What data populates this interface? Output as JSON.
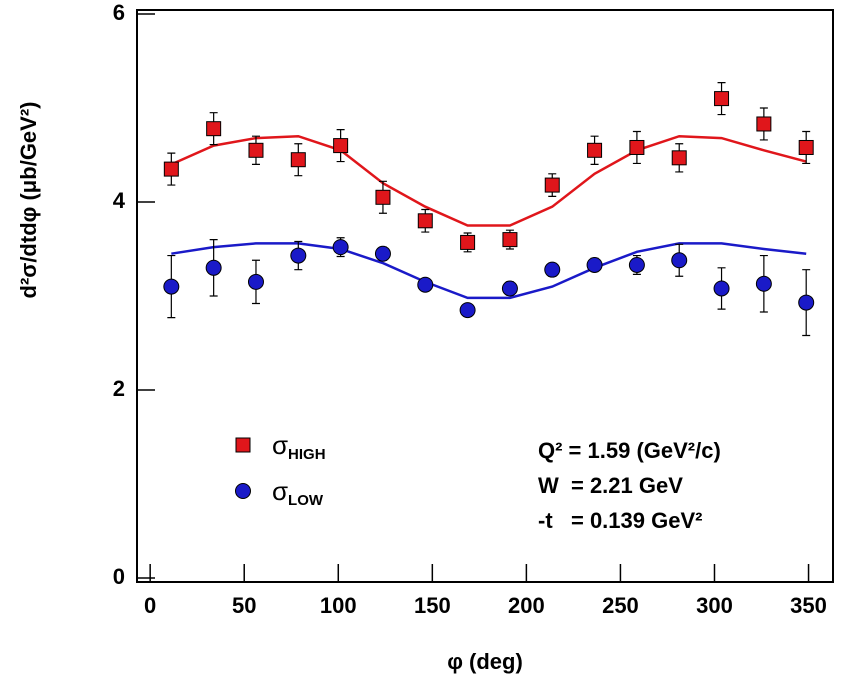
{
  "chart_data": {
    "type": "scatter",
    "x_label": "φ (deg)",
    "y_label": "d²σ/dtdφ (μb/GeV²)",
    "annotations": [
      "Q² = 1.59 (GeV²/c)",
      "W  = 2.21 GeV",
      "-t   = 0.139 GeV²"
    ],
    "x": [
      11.25,
      33.75,
      56.25,
      78.75,
      101.25,
      123.75,
      146.25,
      168.75,
      191.25,
      213.75,
      236.25,
      258.75,
      281.25,
      303.75,
      326.25,
      348.75
    ],
    "series": [
      {
        "name": "σHIGH",
        "color": "#e0161b",
        "marker": "square",
        "values": [
          4.35,
          4.78,
          4.55,
          4.45,
          4.6,
          4.05,
          3.8,
          3.57,
          3.6,
          4.18,
          4.55,
          4.58,
          4.47,
          5.1,
          4.83,
          4.58
        ],
        "errors": [
          0.17,
          0.17,
          0.15,
          0.17,
          0.17,
          0.17,
          0.12,
          0.1,
          0.1,
          0.12,
          0.15,
          0.17,
          0.15,
          0.17,
          0.17,
          0.17
        ],
        "fit": [
          4.4,
          4.6,
          4.68,
          4.7,
          4.55,
          4.2,
          3.95,
          3.75,
          3.75,
          3.95,
          4.3,
          4.55,
          4.7,
          4.68,
          4.55,
          4.43
        ]
      },
      {
        "name": "σLOW",
        "color": "#1a1ac8",
        "marker": "circle",
        "values": [
          3.1,
          3.3,
          3.15,
          3.43,
          3.52,
          3.45,
          3.12,
          2.85,
          3.08,
          3.28,
          3.33,
          3.33,
          3.38,
          3.08,
          3.13,
          2.93
        ],
        "errors": [
          0.33,
          0.3,
          0.23,
          0.15,
          0.1,
          0.07,
          0.05,
          0.05,
          0.07,
          0.07,
          0.07,
          0.1,
          0.17,
          0.22,
          0.3,
          0.35
        ],
        "fit": [
          3.45,
          3.52,
          3.56,
          3.56,
          3.5,
          3.35,
          3.15,
          2.98,
          2.98,
          3.1,
          3.3,
          3.47,
          3.56,
          3.56,
          3.5,
          3.45
        ]
      }
    ],
    "xlim": [
      -7,
      363
    ],
    "ylim": [
      0,
      6
    ],
    "xticks": [
      0,
      50,
      100,
      150,
      200,
      250,
      300,
      350
    ],
    "yticks": [
      0,
      2,
      4,
      6
    ]
  }
}
